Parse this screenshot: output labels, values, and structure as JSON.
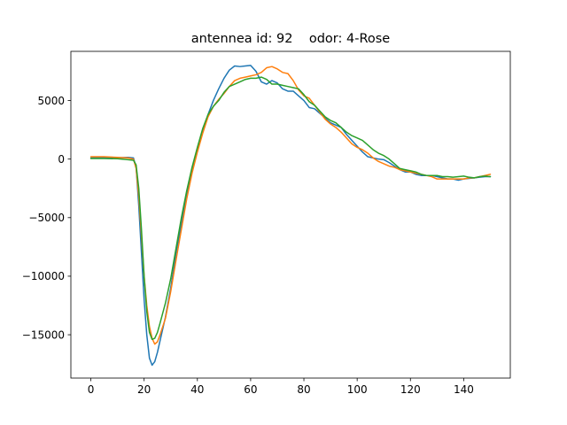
{
  "chart_data": {
    "type": "line",
    "title": "antennea id: 92    odor: 4-Rose",
    "xlabel": "",
    "ylabel": "",
    "xlim": [
      -7.5,
      157.5
    ],
    "ylim": [
      -18700,
      9200
    ],
    "xticks": [
      0,
      20,
      40,
      60,
      80,
      100,
      120,
      140
    ],
    "yticks": [
      -15000,
      -10000,
      -5000,
      0,
      5000
    ],
    "ytick_labels": [
      "−15000",
      "−10000",
      "−5000",
      "0",
      "5000"
    ],
    "grid": false,
    "legend": "none",
    "series": [
      {
        "color": "#1f77b4",
        "x": [
          0,
          5,
          10,
          14,
          16,
          17,
          18,
          19,
          20,
          21,
          22,
          23,
          24,
          25,
          26,
          28,
          30,
          32,
          34,
          36,
          38,
          40,
          42,
          44,
          46,
          48,
          50,
          52,
          54,
          56,
          58,
          60,
          62,
          64,
          66,
          68,
          70,
          72,
          74,
          76,
          78,
          80,
          82,
          84,
          86,
          88,
          90,
          92,
          94,
          96,
          98,
          100,
          102,
          104,
          106,
          108,
          110,
          112,
          114,
          116,
          118,
          120,
          122,
          124,
          126,
          128,
          130,
          132,
          134,
          136,
          138,
          140,
          142,
          144,
          146,
          148,
          150
        ],
        "y": [
          100,
          150,
          120,
          150,
          100,
          -700,
          -4000,
          -8000,
          -12000,
          -15000,
          -17000,
          -17600,
          -17300,
          -16500,
          -15500,
          -13500,
          -11000,
          -8000,
          -5500,
          -3000,
          -1000,
          700,
          2300,
          3800,
          5000,
          6000,
          6900,
          7600,
          7950,
          7900,
          7950,
          8000,
          7500,
          6600,
          6400,
          6700,
          6500,
          6000,
          5800,
          5800,
          5400,
          5000,
          4400,
          4300,
          3900,
          3500,
          3100,
          2900,
          2700,
          2100,
          1600,
          1100,
          600,
          200,
          100,
          0,
          -50,
          -300,
          -600,
          -900,
          -1100,
          -1100,
          -1300,
          -1400,
          -1400,
          -1400,
          -1500,
          -1600,
          -1700,
          -1700,
          -1800,
          -1700,
          -1650,
          -1600,
          -1550,
          -1500,
          -1500
        ]
      },
      {
        "color": "#ff7f0e",
        "x": [
          0,
          5,
          10,
          14,
          16,
          17,
          18,
          19,
          20,
          21,
          22,
          23,
          24,
          25,
          26,
          28,
          30,
          32,
          34,
          36,
          38,
          40,
          42,
          44,
          46,
          48,
          50,
          52,
          54,
          56,
          58,
          60,
          62,
          64,
          66,
          68,
          70,
          72,
          74,
          76,
          78,
          80,
          82,
          84,
          86,
          88,
          90,
          92,
          94,
          96,
          98,
          100,
          102,
          104,
          106,
          108,
          110,
          112,
          114,
          116,
          118,
          120,
          122,
          124,
          126,
          128,
          130,
          132,
          134,
          136,
          138,
          140,
          142,
          144,
          146,
          148,
          150
        ],
        "y": [
          200,
          200,
          150,
          100,
          0,
          -800,
          -3200,
          -6500,
          -10000,
          -12500,
          -14300,
          -15300,
          -15800,
          -15600,
          -15000,
          -13600,
          -11300,
          -8600,
          -6000,
          -3400,
          -1200,
          600,
          2200,
          3600,
          4500,
          5100,
          5600,
          6200,
          6700,
          6900,
          7000,
          7100,
          7200,
          7400,
          7800,
          7900,
          7700,
          7400,
          7300,
          6700,
          5900,
          5400,
          5200,
          4600,
          4000,
          3400,
          3000,
          2700,
          2300,
          1800,
          1300,
          1000,
          800,
          500,
          100,
          -200,
          -400,
          -600,
          -700,
          -900,
          -1000,
          -1100,
          -1200,
          -1300,
          -1400,
          -1500,
          -1700,
          -1700,
          -1700,
          -1700,
          -1700,
          -1700,
          -1600,
          -1600,
          -1500,
          -1400,
          -1300
        ]
      },
      {
        "color": "#2ca02c",
        "x": [
          0,
          5,
          10,
          14,
          16,
          17,
          18,
          19,
          20,
          21,
          22,
          23,
          24,
          25,
          26,
          28,
          30,
          32,
          34,
          36,
          38,
          40,
          42,
          44,
          46,
          48,
          50,
          52,
          54,
          56,
          58,
          60,
          62,
          64,
          66,
          68,
          70,
          72,
          74,
          76,
          78,
          80,
          82,
          84,
          86,
          88,
          90,
          92,
          94,
          96,
          98,
          100,
          102,
          104,
          106,
          108,
          110,
          112,
          114,
          116,
          118,
          120,
          122,
          124,
          126,
          128,
          130,
          132,
          134,
          136,
          138,
          140,
          142,
          144,
          146,
          148,
          150
        ],
        "y": [
          50,
          50,
          30,
          -50,
          -100,
          -500,
          -2500,
          -6000,
          -10000,
          -13000,
          -14800,
          -15400,
          -15300,
          -14800,
          -14000,
          -12300,
          -10200,
          -7600,
          -5000,
          -2700,
          -700,
          1000,
          2600,
          3800,
          4500,
          5000,
          5700,
          6200,
          6400,
          6600,
          6800,
          6900,
          6900,
          7000,
          6800,
          6400,
          6400,
          6300,
          6200,
          6100,
          6000,
          5500,
          4900,
          4600,
          4100,
          3600,
          3300,
          3100,
          2700,
          2300,
          2000,
          1800,
          1600,
          1200,
          800,
          500,
          300,
          0,
          -400,
          -800,
          -900,
          -1000,
          -1100,
          -1300,
          -1400,
          -1400,
          -1400,
          -1500,
          -1500,
          -1550,
          -1500,
          -1450,
          -1550,
          -1600,
          -1500,
          -1450,
          -1500
        ]
      }
    ]
  }
}
